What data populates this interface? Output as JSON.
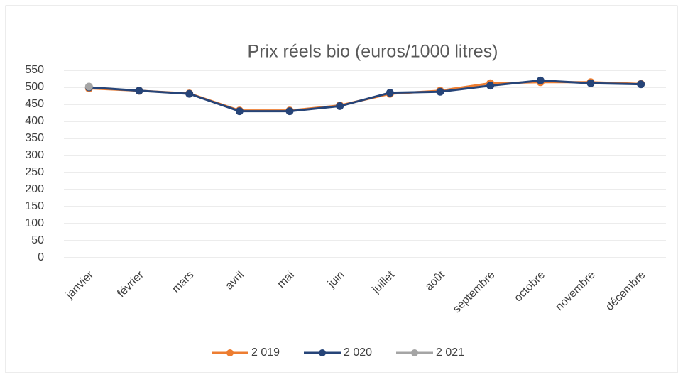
{
  "chart_data": {
    "type": "line",
    "title": "Prix réels bio (euros/1000 litres)",
    "categories": [
      "janvier",
      "février",
      "mars",
      "avril",
      "mai",
      "juin",
      "juillet",
      "août",
      "septembre",
      "octobre",
      "novembre",
      "décembre"
    ],
    "series": [
      {
        "name": "2 019",
        "color": "#ed7d31",
        "values": [
          497,
          490,
          482,
          432,
          432,
          447,
          481,
          490,
          512,
          515,
          515,
          510
        ]
      },
      {
        "name": "2 020",
        "color": "#264478",
        "values": [
          500,
          490,
          481,
          430,
          430,
          445,
          484,
          487,
          505,
          520,
          512,
          509
        ]
      },
      {
        "name": "2 021",
        "color": "#a5a5a5",
        "values": [
          502,
          null,
          null,
          null,
          null,
          null,
          null,
          null,
          null,
          null,
          null,
          null
        ]
      }
    ],
    "ylim": [
      0,
      550
    ],
    "yticks": [
      0,
      50,
      100,
      150,
      200,
      250,
      300,
      350,
      400,
      450,
      500,
      550
    ],
    "grid": true,
    "legend": "bottom"
  }
}
